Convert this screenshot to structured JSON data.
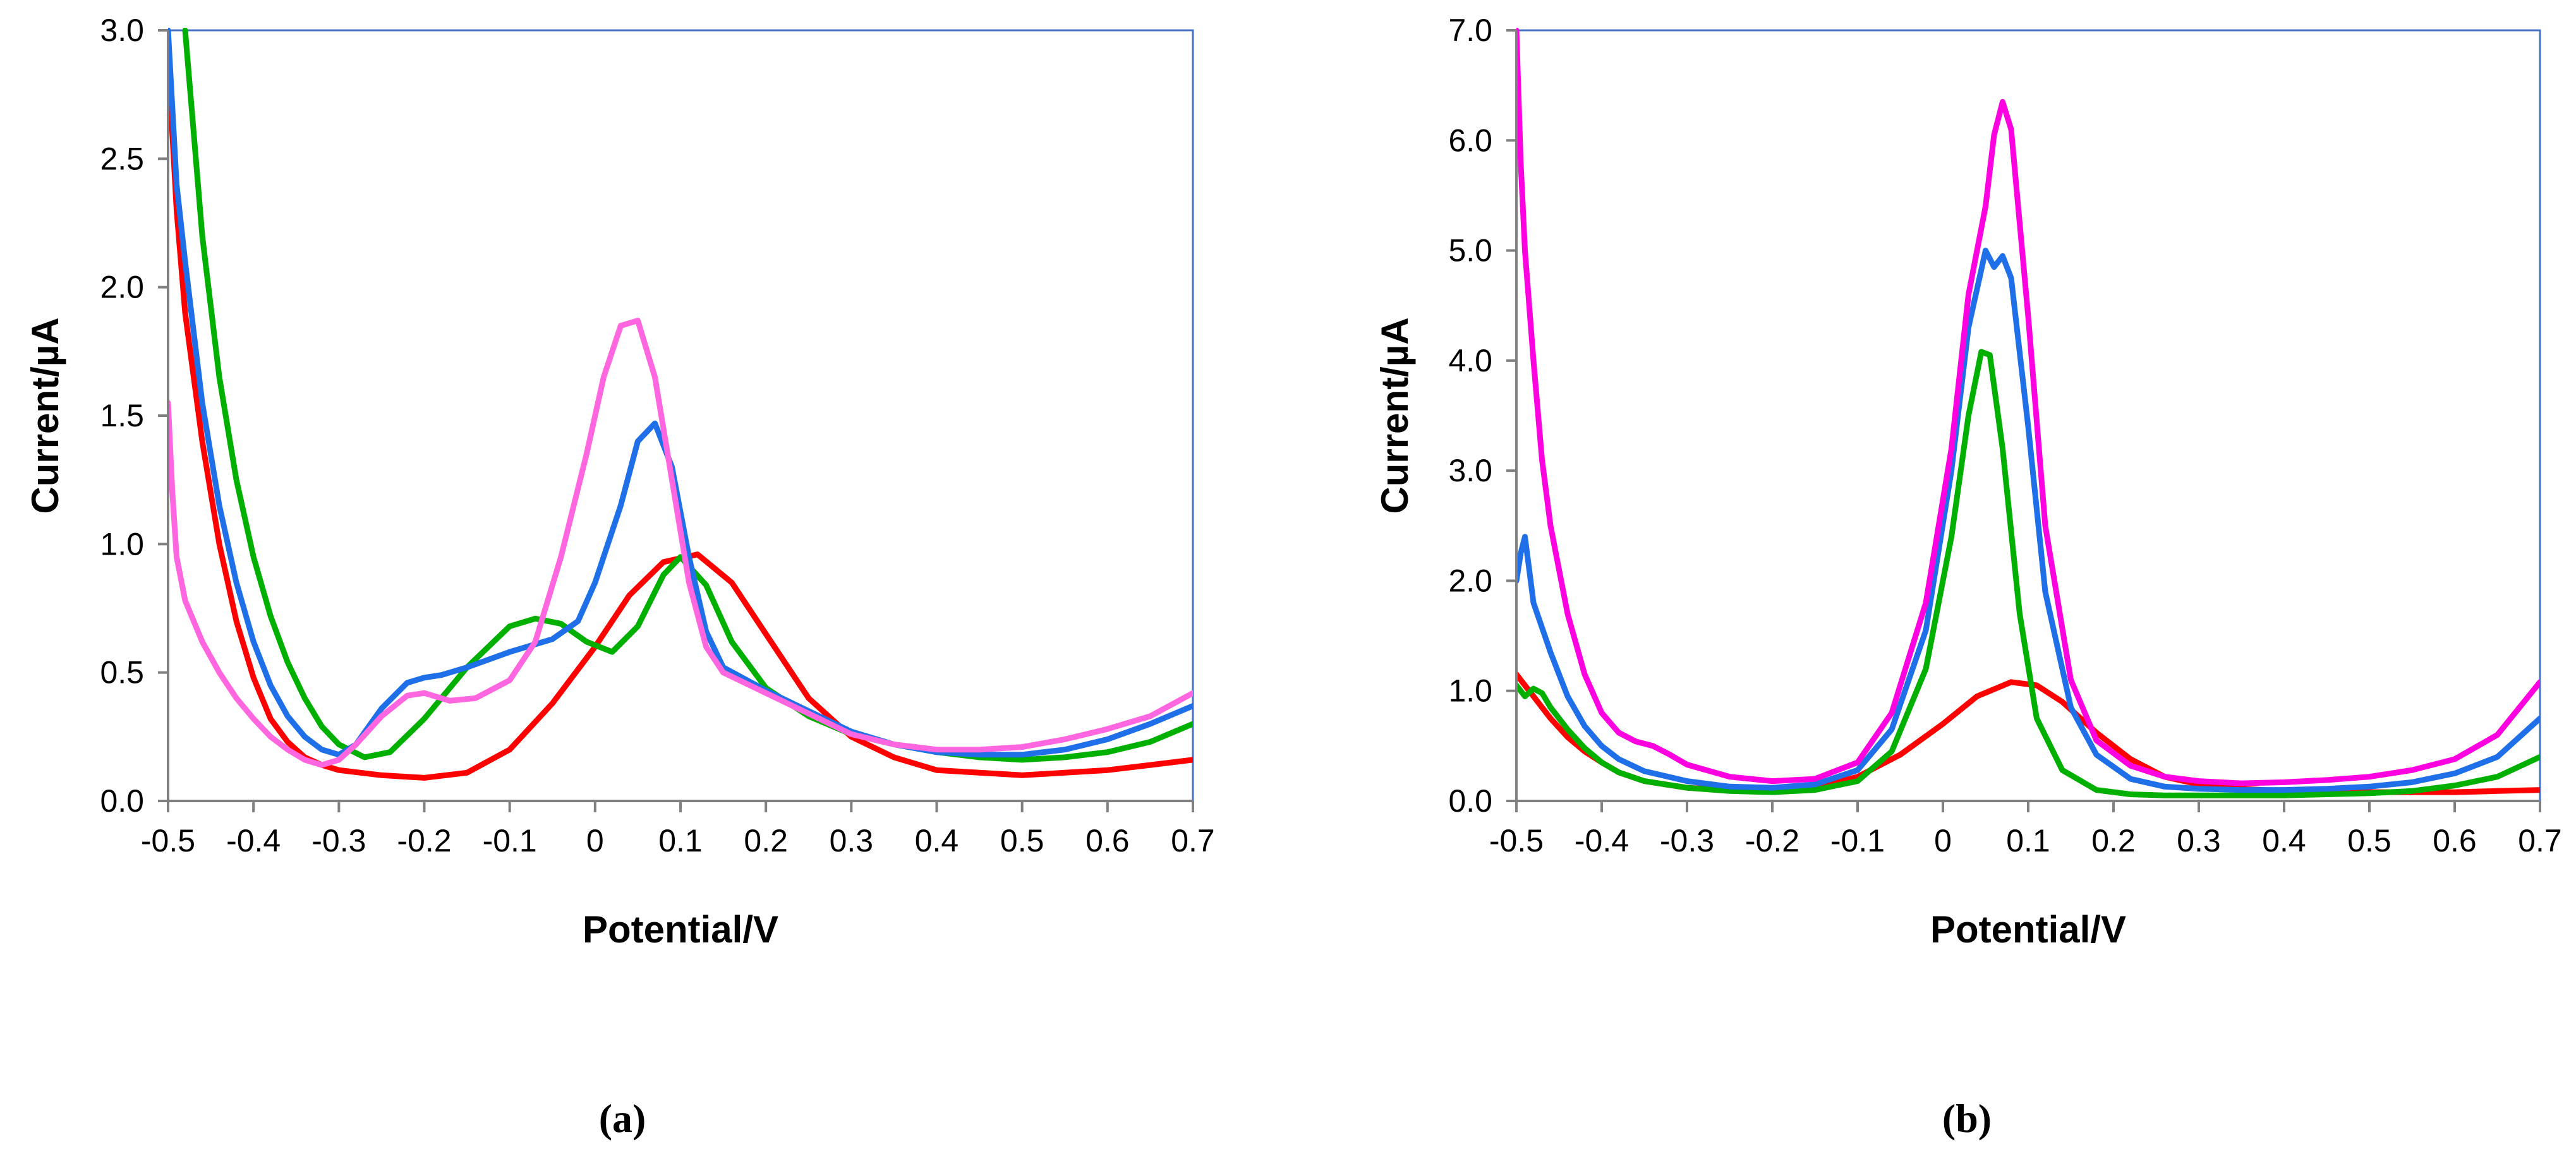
{
  "chart_data": [
    {
      "type": "line",
      "panel_label": "(a)",
      "title": "",
      "xlabel": "Potential/V",
      "ylabel": "Current/µA",
      "xlim": [
        -0.5,
        0.7
      ],
      "ylim": [
        0,
        3.0
      ],
      "xticks": [
        -0.5,
        -0.4,
        -0.3,
        -0.2,
        -0.1,
        0,
        0.1,
        0.2,
        0.3,
        0.4,
        0.5,
        0.6,
        0.7
      ],
      "xtick_labels": [
        "-0.5",
        "-0.4",
        "-0.3",
        "-0.2",
        "-0.1",
        "0",
        "0.1",
        "0.2",
        "0.3",
        "0.4",
        "0.5",
        "0.6",
        "0.7"
      ],
      "yticks": [
        0,
        0.5,
        1.0,
        1.5,
        2.0,
        2.5,
        3.0
      ],
      "ytick_labels": [
        "0.0",
        "0.5",
        "1.0",
        "1.5",
        "2.0",
        "2.5",
        "3.0"
      ],
      "grid": false,
      "legend": "none",
      "series": [
        {
          "color": "#ff0000",
          "x": [
            -0.5,
            -0.49,
            -0.48,
            -0.46,
            -0.44,
            -0.42,
            -0.4,
            -0.38,
            -0.36,
            -0.34,
            -0.32,
            -0.3,
            -0.25,
            -0.2,
            -0.15,
            -0.1,
            -0.05,
            0.0,
            0.04,
            0.08,
            0.12,
            0.16,
            0.2,
            0.25,
            0.3,
            0.35,
            0.4,
            0.45,
            0.5,
            0.55,
            0.6,
            0.65,
            0.7
          ],
          "y": [
            2.9,
            2.3,
            1.9,
            1.4,
            1.0,
            0.7,
            0.48,
            0.32,
            0.23,
            0.17,
            0.14,
            0.12,
            0.1,
            0.09,
            0.11,
            0.2,
            0.38,
            0.6,
            0.8,
            0.93,
            0.96,
            0.85,
            0.65,
            0.4,
            0.25,
            0.17,
            0.12,
            0.11,
            0.1,
            0.11,
            0.12,
            0.14,
            0.16
          ]
        },
        {
          "color": "#00b000",
          "x": [
            -0.48,
            -0.47,
            -0.46,
            -0.44,
            -0.42,
            -0.4,
            -0.38,
            -0.36,
            -0.34,
            -0.32,
            -0.3,
            -0.27,
            -0.24,
            -0.2,
            -0.15,
            -0.1,
            -0.07,
            -0.04,
            -0.01,
            0.02,
            0.05,
            0.08,
            0.1,
            0.13,
            0.16,
            0.2,
            0.25,
            0.3,
            0.35,
            0.4,
            0.45,
            0.5,
            0.55,
            0.6,
            0.65,
            0.7
          ],
          "y": [
            3.0,
            2.6,
            2.2,
            1.65,
            1.25,
            0.95,
            0.72,
            0.54,
            0.4,
            0.29,
            0.22,
            0.17,
            0.19,
            0.32,
            0.52,
            0.68,
            0.71,
            0.69,
            0.62,
            0.58,
            0.68,
            0.88,
            0.95,
            0.84,
            0.62,
            0.44,
            0.33,
            0.26,
            0.22,
            0.19,
            0.17,
            0.16,
            0.17,
            0.19,
            0.23,
            0.3
          ]
        },
        {
          "color": "#1e6fe8",
          "x": [
            -0.5,
            -0.49,
            -0.48,
            -0.46,
            -0.44,
            -0.42,
            -0.4,
            -0.38,
            -0.36,
            -0.34,
            -0.32,
            -0.3,
            -0.28,
            -0.25,
            -0.22,
            -0.2,
            -0.18,
            -0.15,
            -0.1,
            -0.05,
            -0.02,
            0.0,
            0.03,
            0.05,
            0.07,
            0.09,
            0.11,
            0.13,
            0.15,
            0.2,
            0.25,
            0.3,
            0.35,
            0.4,
            0.45,
            0.5,
            0.55,
            0.6,
            0.65,
            0.7
          ],
          "y": [
            3.0,
            2.4,
            2.1,
            1.55,
            1.15,
            0.85,
            0.62,
            0.45,
            0.33,
            0.25,
            0.2,
            0.18,
            0.22,
            0.36,
            0.46,
            0.48,
            0.49,
            0.52,
            0.58,
            0.63,
            0.7,
            0.85,
            1.15,
            1.4,
            1.47,
            1.3,
            0.95,
            0.66,
            0.52,
            0.43,
            0.35,
            0.27,
            0.22,
            0.19,
            0.18,
            0.18,
            0.2,
            0.24,
            0.3,
            0.37
          ]
        },
        {
          "color": "#ff66e0",
          "x": [
            -0.5,
            -0.495,
            -0.49,
            -0.48,
            -0.46,
            -0.44,
            -0.42,
            -0.4,
            -0.38,
            -0.36,
            -0.34,
            -0.32,
            -0.3,
            -0.28,
            -0.25,
            -0.22,
            -0.2,
            -0.17,
            -0.14,
            -0.1,
            -0.07,
            -0.04,
            -0.01,
            0.01,
            0.03,
            0.05,
            0.07,
            0.09,
            0.11,
            0.13,
            0.15,
            0.2,
            0.25,
            0.3,
            0.35,
            0.4,
            0.45,
            0.5,
            0.55,
            0.6,
            0.65,
            0.7
          ],
          "y": [
            1.55,
            1.2,
            0.95,
            0.78,
            0.62,
            0.5,
            0.4,
            0.32,
            0.25,
            0.2,
            0.16,
            0.14,
            0.16,
            0.22,
            0.33,
            0.41,
            0.42,
            0.39,
            0.4,
            0.47,
            0.62,
            0.95,
            1.35,
            1.65,
            1.85,
            1.87,
            1.65,
            1.25,
            0.85,
            0.6,
            0.5,
            0.42,
            0.34,
            0.26,
            0.22,
            0.2,
            0.2,
            0.21,
            0.24,
            0.28,
            0.33,
            0.42
          ]
        }
      ]
    },
    {
      "type": "line",
      "panel_label": "(b)",
      "title": "",
      "xlabel": "Potential/V",
      "ylabel": "Current/µA",
      "xlim": [
        -0.5,
        0.7
      ],
      "ylim": [
        0,
        7.0
      ],
      "xticks": [
        -0.5,
        -0.4,
        -0.3,
        -0.2,
        -0.1,
        0,
        0.1,
        0.2,
        0.3,
        0.4,
        0.5,
        0.6,
        0.7
      ],
      "xtick_labels": [
        "-0.5",
        "-0.4",
        "-0.3",
        "-0.2",
        "-0.1",
        "0",
        "0.1",
        "0.2",
        "0.3",
        "0.4",
        "0.5",
        "0.6",
        "0.7"
      ],
      "yticks": [
        0,
        1.0,
        2.0,
        3.0,
        4.0,
        5.0,
        6.0,
        7.0
      ],
      "ytick_labels": [
        "0.0",
        "1.0",
        "2.0",
        "3.0",
        "4.0",
        "5.0",
        "6.0",
        "7.0"
      ],
      "grid": false,
      "legend": "none",
      "series": [
        {
          "color": "#ff0000",
          "x": [
            -0.5,
            -0.48,
            -0.46,
            -0.44,
            -0.42,
            -0.4,
            -0.38,
            -0.35,
            -0.3,
            -0.25,
            -0.2,
            -0.15,
            -0.1,
            -0.05,
            0.0,
            0.04,
            0.08,
            0.11,
            0.14,
            0.18,
            0.22,
            0.26,
            0.3,
            0.35,
            0.4,
            0.45,
            0.5,
            0.55,
            0.6,
            0.65,
            0.7
          ],
          "y": [
            1.15,
            0.95,
            0.75,
            0.58,
            0.45,
            0.35,
            0.26,
            0.18,
            0.12,
            0.1,
            0.09,
            0.12,
            0.22,
            0.42,
            0.7,
            0.95,
            1.08,
            1.05,
            0.9,
            0.62,
            0.38,
            0.22,
            0.15,
            0.11,
            0.09,
            0.08,
            0.08,
            0.08,
            0.08,
            0.09,
            0.1
          ]
        },
        {
          "color": "#00b000",
          "x": [
            -0.5,
            -0.49,
            -0.48,
            -0.47,
            -0.46,
            -0.44,
            -0.42,
            -0.4,
            -0.38,
            -0.35,
            -0.3,
            -0.25,
            -0.2,
            -0.15,
            -0.1,
            -0.06,
            -0.02,
            0.01,
            0.03,
            0.045,
            0.055,
            0.07,
            0.09,
            0.11,
            0.14,
            0.18,
            0.22,
            0.26,
            0.3,
            0.35,
            0.4,
            0.45,
            0.5,
            0.55,
            0.6,
            0.65,
            0.7
          ],
          "y": [
            1.05,
            0.95,
            1.02,
            0.98,
            0.85,
            0.65,
            0.48,
            0.35,
            0.26,
            0.18,
            0.12,
            0.09,
            0.08,
            0.1,
            0.18,
            0.45,
            1.2,
            2.4,
            3.5,
            4.08,
            4.05,
            3.2,
            1.7,
            0.75,
            0.28,
            0.1,
            0.06,
            0.05,
            0.05,
            0.05,
            0.05,
            0.06,
            0.07,
            0.09,
            0.14,
            0.22,
            0.4
          ]
        },
        {
          "color": "#1e6fe8",
          "x": [
            -0.5,
            -0.495,
            -0.49,
            -0.485,
            -0.48,
            -0.46,
            -0.44,
            -0.42,
            -0.4,
            -0.38,
            -0.35,
            -0.3,
            -0.25,
            -0.2,
            -0.15,
            -0.1,
            -0.06,
            -0.02,
            0.01,
            0.03,
            0.05,
            0.06,
            0.07,
            0.08,
            0.1,
            0.12,
            0.15,
            0.18,
            0.22,
            0.26,
            0.3,
            0.35,
            0.4,
            0.45,
            0.5,
            0.55,
            0.6,
            0.65,
            0.7
          ],
          "y": [
            2.0,
            2.25,
            2.4,
            2.1,
            1.8,
            1.35,
            0.95,
            0.68,
            0.5,
            0.38,
            0.27,
            0.18,
            0.13,
            0.12,
            0.15,
            0.28,
            0.65,
            1.55,
            3.0,
            4.3,
            5.0,
            4.85,
            4.95,
            4.75,
            3.4,
            1.9,
            0.85,
            0.42,
            0.2,
            0.13,
            0.11,
            0.1,
            0.1,
            0.11,
            0.13,
            0.17,
            0.25,
            0.4,
            0.75
          ]
        },
        {
          "color": "#ff00e0",
          "x": [
            -0.5,
            -0.495,
            -0.49,
            -0.48,
            -0.47,
            -0.46,
            -0.44,
            -0.42,
            -0.4,
            -0.38,
            -0.36,
            -0.34,
            -0.32,
            -0.3,
            -0.25,
            -0.2,
            -0.15,
            -0.1,
            -0.06,
            -0.02,
            0.01,
            0.03,
            0.05,
            0.06,
            0.07,
            0.08,
            0.1,
            0.12,
            0.15,
            0.18,
            0.22,
            0.26,
            0.3,
            0.35,
            0.4,
            0.45,
            0.5,
            0.55,
            0.6,
            0.65,
            0.7
          ],
          "y": [
            7.0,
            5.8,
            5.0,
            4.0,
            3.1,
            2.5,
            1.7,
            1.15,
            0.8,
            0.62,
            0.54,
            0.5,
            0.42,
            0.33,
            0.22,
            0.18,
            0.2,
            0.35,
            0.8,
            1.8,
            3.2,
            4.6,
            5.4,
            6.05,
            6.35,
            6.1,
            4.4,
            2.5,
            1.1,
            0.55,
            0.32,
            0.22,
            0.18,
            0.16,
            0.17,
            0.19,
            0.22,
            0.28,
            0.38,
            0.6,
            1.08
          ]
        }
      ]
    }
  ]
}
